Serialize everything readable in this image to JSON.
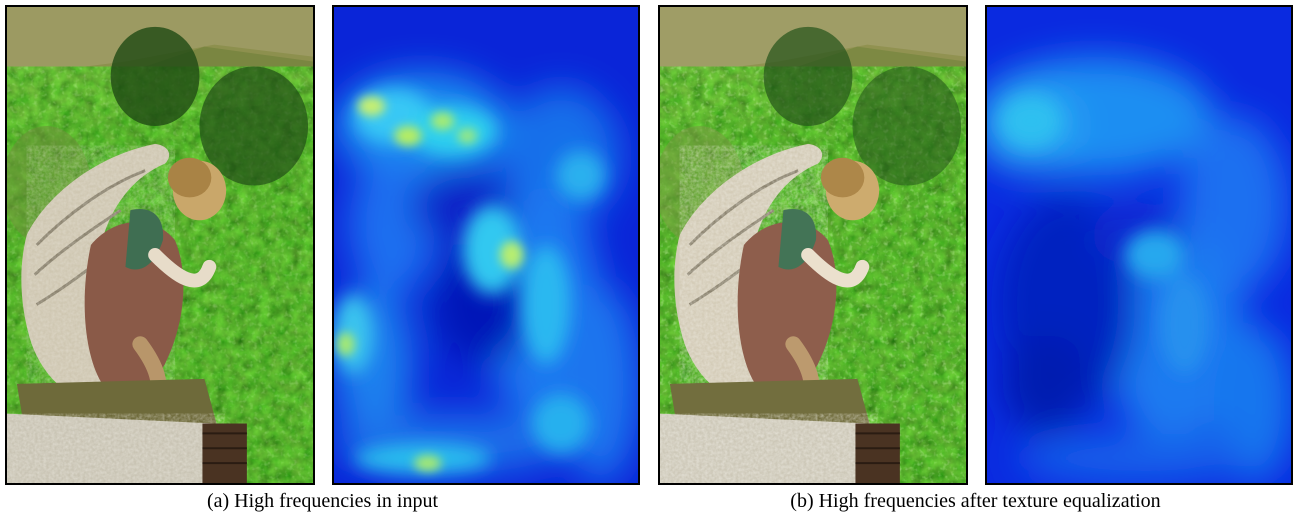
{
  "figure": {
    "captions": {
      "a": "(a) High frequencies in input",
      "b": "(b) High frequencies after texture equalization"
    }
  }
}
